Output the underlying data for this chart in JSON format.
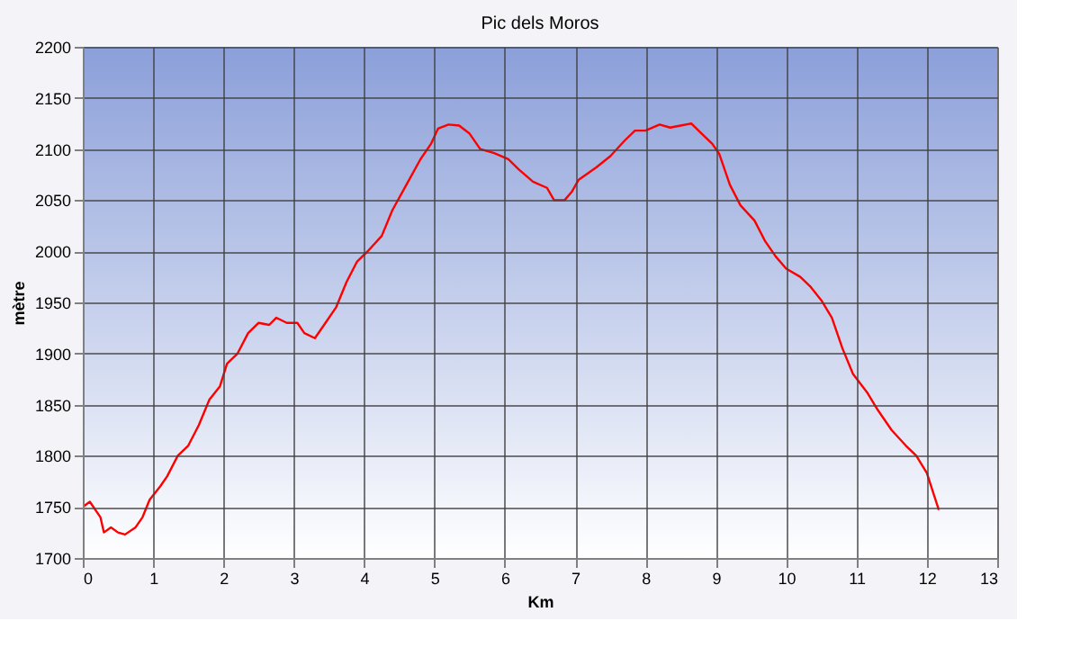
{
  "chart_data": {
    "type": "line",
    "title": "Pic dels Moros",
    "xlabel": "Km",
    "ylabel": "mètre",
    "x": [
      0,
      0.1,
      0.25,
      0.3,
      0.4,
      0.5,
      0.6,
      0.75,
      0.85,
      0.95,
      1.1,
      1.2,
      1.35,
      1.5,
      1.65,
      1.8,
      1.95,
      2.05,
      2.2,
      2.35,
      2.5,
      2.65,
      2.75,
      2.9,
      3.05,
      3.15,
      3.3,
      3.45,
      3.6,
      3.75,
      3.9,
      4.05,
      4.25,
      4.4,
      4.6,
      4.8,
      4.95,
      5.05,
      5.2,
      5.35,
      5.5,
      5.65,
      5.85,
      6.05,
      6.2,
      6.4,
      6.6,
      6.7,
      6.85,
      6.95,
      7.05,
      7.3,
      7.5,
      7.7,
      7.85,
      8.0,
      8.2,
      8.35,
      8.5,
      8.65,
      8.8,
      8.95,
      9.05,
      9.2,
      9.35,
      9.55,
      9.7,
      9.85,
      10.0,
      10.2,
      10.35,
      10.5,
      10.65,
      10.8,
      10.95,
      11.15,
      11.3,
      11.5,
      11.7,
      11.85,
      12.0,
      12.17
    ],
    "series": [
      {
        "color": "#ff0000",
        "values": [
          1750,
          1755,
          1740,
          1725,
          1730,
          1725,
          1723,
          1730,
          1740,
          1757,
          1770,
          1780,
          1800,
          1810,
          1830,
          1855,
          1868,
          1890,
          1900,
          1920,
          1930,
          1928,
          1935,
          1930,
          1930,
          1920,
          1915,
          1930,
          1945,
          1970,
          1990,
          2000,
          2015,
          2040,
          2065,
          2090,
          2105,
          2120,
          2124,
          2123,
          2115,
          2100,
          2096,
          2090,
          2080,
          2068,
          2062,
          2050,
          2050,
          2058,
          2070,
          2082,
          2093,
          2108,
          2118,
          2118,
          2124,
          2121,
          2123,
          2125,
          2115,
          2105,
          2095,
          2065,
          2045,
          2030,
          2010,
          1995,
          1983,
          1975,
          1965,
          1952,
          1935,
          1905,
          1880,
          1862,
          1845,
          1825,
          1810,
          1800,
          1783,
          1747
        ]
      }
    ],
    "xlim": [
      0,
      13
    ],
    "xticks": [
      0,
      1,
      2,
      3,
      4,
      5,
      6,
      7,
      8,
      9,
      10,
      11,
      12,
      13
    ],
    "ylim": [
      1700,
      2200
    ],
    "yticks": [
      1700,
      1750,
      1800,
      1850,
      1900,
      1950,
      2000,
      2050,
      2100,
      2150,
      2200
    ],
    "grid": true,
    "legend": false,
    "marker": "none",
    "line_style": "solid"
  }
}
